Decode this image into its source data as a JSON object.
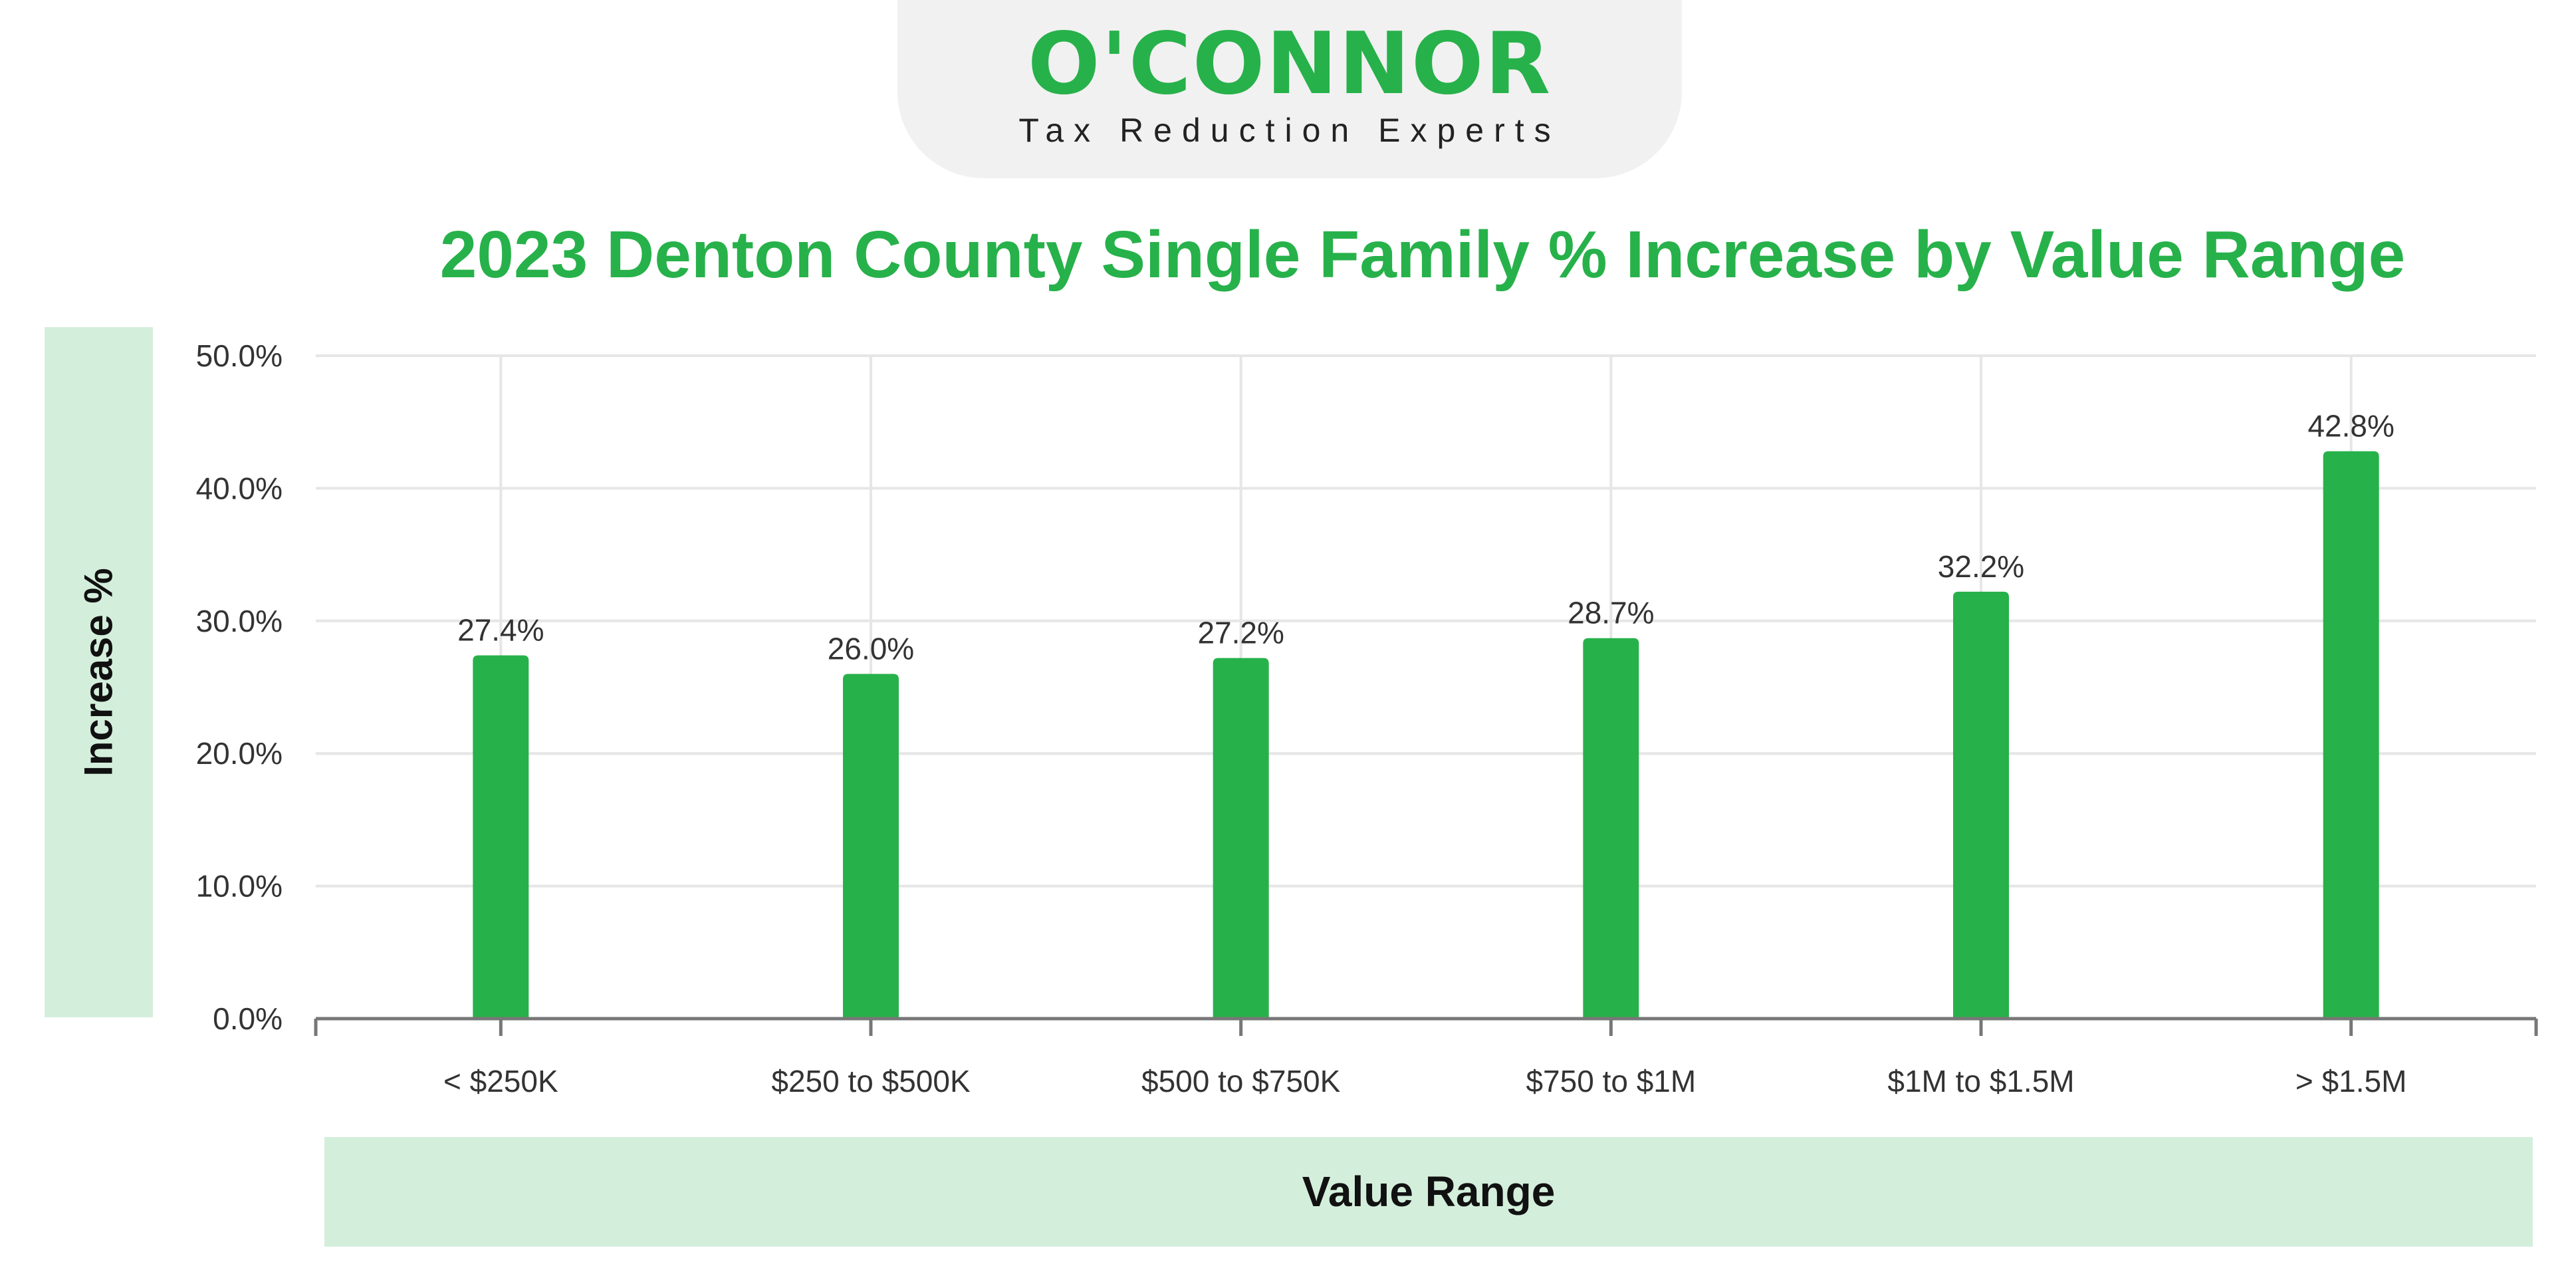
{
  "logo": {
    "name": "O'CONNOR",
    "tagline": "Tax Reduction Experts"
  },
  "colors": {
    "brand_green": "#27b14a",
    "band_green": "#d4eedc",
    "grid": "#e6e6e6",
    "axis": "#777777",
    "text": "#333333"
  },
  "chart_data": {
    "type": "bar",
    "title": "2023 Denton County Single Family % Increase by Value Range",
    "xlabel": "Value Range",
    "ylabel": "Increase %",
    "categories": [
      "< $250K",
      "$250 to $500K",
      "$500 to $750K",
      "$750 to $1M",
      "$1M to $1.5M",
      "> $1.5M"
    ],
    "values": [
      27.4,
      26.0,
      27.2,
      28.7,
      32.2,
      42.8
    ],
    "data_labels": [
      "27.4%",
      "26.0%",
      "27.2%",
      "28.7%",
      "32.2%",
      "42.8%"
    ],
    "ylim": [
      0,
      50
    ],
    "y_ticks": [
      "0.0%",
      "10.0%",
      "20.0%",
      "30.0%",
      "40.0%",
      "50.0%"
    ],
    "grid": true,
    "legend": "none",
    "bar_color": "#27b14a"
  }
}
